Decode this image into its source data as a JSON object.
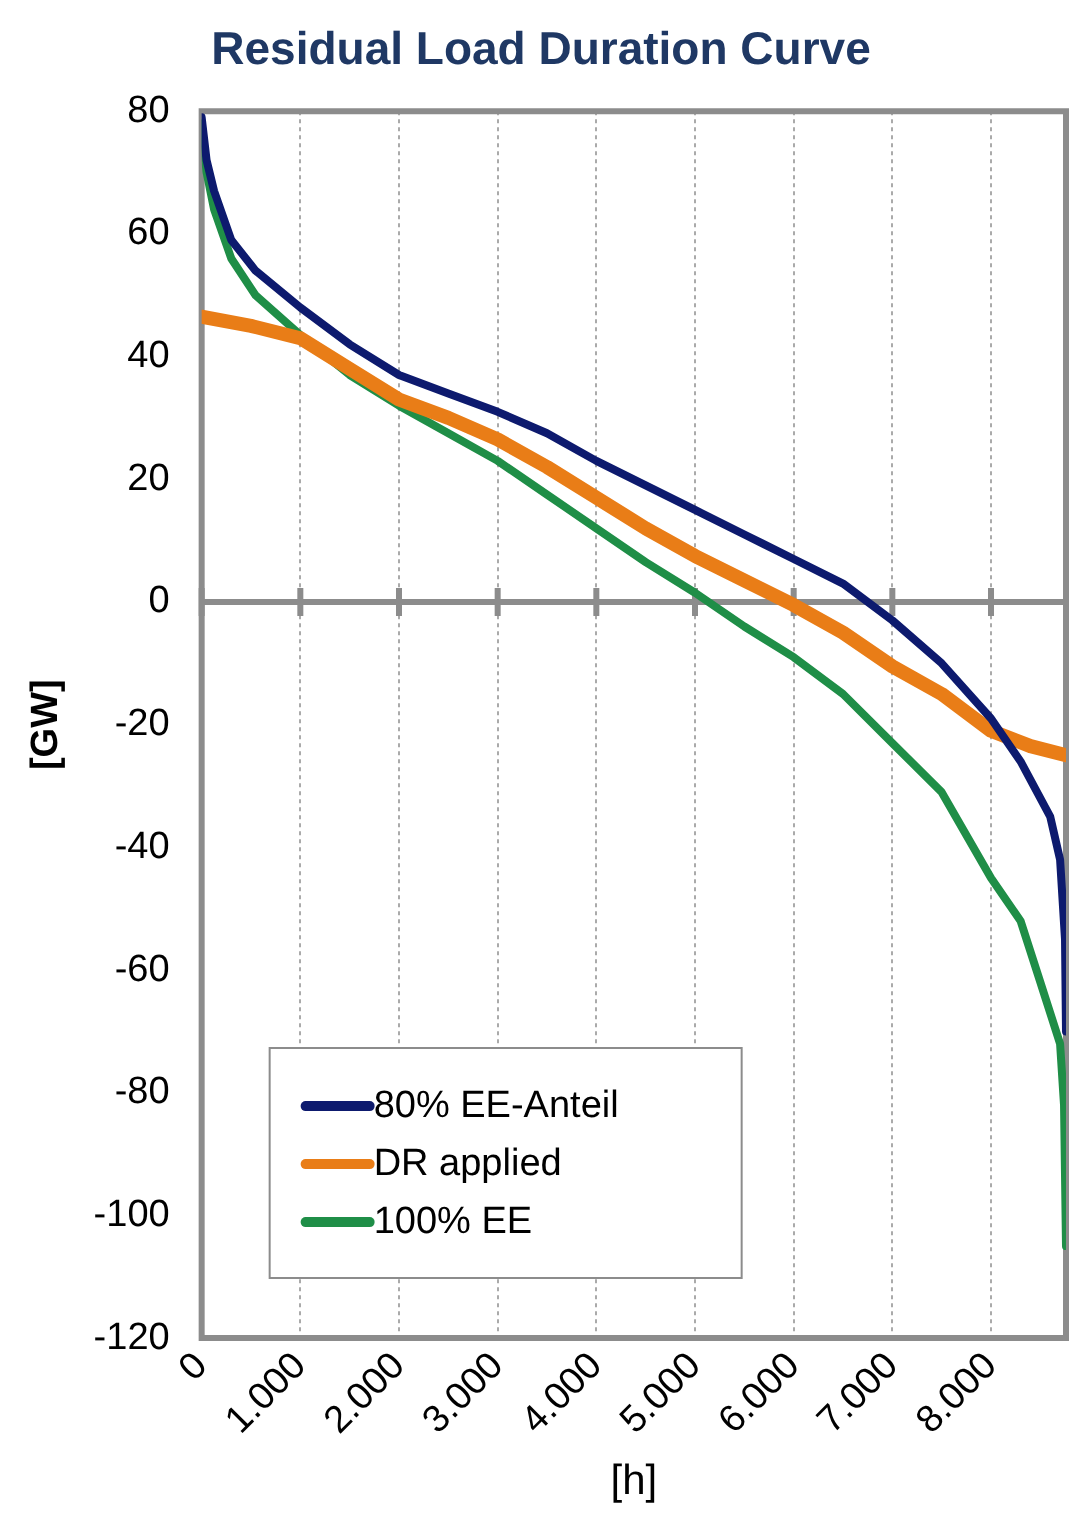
{
  "chart_data": {
    "type": "line",
    "title": "Residual Load Duration Curve",
    "xlabel": "[h]",
    "ylabel": "[GW]",
    "xlim": [
      0,
      8760
    ],
    "ylim": [
      -120,
      80
    ],
    "xticks": [
      0,
      {
        "value": 1000,
        "label": "1.000"
      },
      {
        "value": 2000,
        "label": "2.000"
      },
      {
        "value": 3000,
        "label": "3.000"
      },
      {
        "value": 4000,
        "label": "4.000"
      },
      {
        "value": 5000,
        "label": "5.000"
      },
      {
        "value": 6000,
        "label": "6.000"
      },
      {
        "value": 7000,
        "label": "7.000"
      },
      {
        "value": 8000,
        "label": "8.000"
      }
    ],
    "yticks": [
      -120,
      -100,
      -80,
      -60,
      -40,
      -20,
      0,
      20,
      40,
      60,
      80
    ],
    "grid": "x",
    "legend": "bottom left",
    "marker": "none",
    "line_style": "solid",
    "ref_lines": [
      {
        "axis": "y",
        "value": 0,
        "color": "#8c8c8c"
      }
    ],
    "series": [
      {
        "name": "80% EE-Anteil",
        "color": "#0d1a6e",
        "x": [
          0,
          50,
          126,
          300,
          546,
          1000,
          1500,
          2000,
          2500,
          3000,
          3500,
          4000,
          4500,
          5000,
          5500,
          6000,
          6500,
          7000,
          7500,
          8000,
          8300,
          8600,
          8700,
          8750,
          8760
        ],
        "values": [
          79,
          72,
          67,
          59,
          54,
          48,
          42,
          37,
          34,
          31,
          27.5,
          23,
          19,
          15,
          11,
          7,
          3,
          -3,
          -10,
          -19,
          -26,
          -35,
          -42,
          -55,
          -70
        ]
      },
      {
        "name": "DR applied",
        "color": "#e97d17",
        "x": [
          0,
          500,
          1000,
          1500,
          2000,
          2500,
          3000,
          3500,
          4000,
          4500,
          5000,
          5500,
          6000,
          6500,
          7000,
          7500,
          8000,
          8400,
          8760
        ],
        "values": [
          46.5,
          45,
          43,
          38,
          33,
          30,
          26.5,
          22,
          17,
          12,
          7.5,
          3.5,
          -0.5,
          -5,
          -10.5,
          -15,
          -21,
          -23.5,
          -25
        ]
      },
      {
        "name": "100% EE",
        "color": "#1f8e47",
        "x": [
          0,
          50,
          126,
          300,
          546,
          1000,
          1500,
          2000,
          2500,
          3000,
          3500,
          4000,
          4500,
          5000,
          5500,
          6000,
          6500,
          7000,
          7500,
          8000,
          8300,
          8500,
          8700,
          8740,
          8760
        ],
        "values": [
          78,
          70,
          64,
          56,
          50,
          43.5,
          37,
          32,
          27.5,
          23,
          17.5,
          12,
          6.5,
          1.5,
          -4,
          -9,
          -15,
          -23,
          -31,
          -45,
          -52,
          -62,
          -72,
          -82,
          -105
        ]
      }
    ]
  }
}
